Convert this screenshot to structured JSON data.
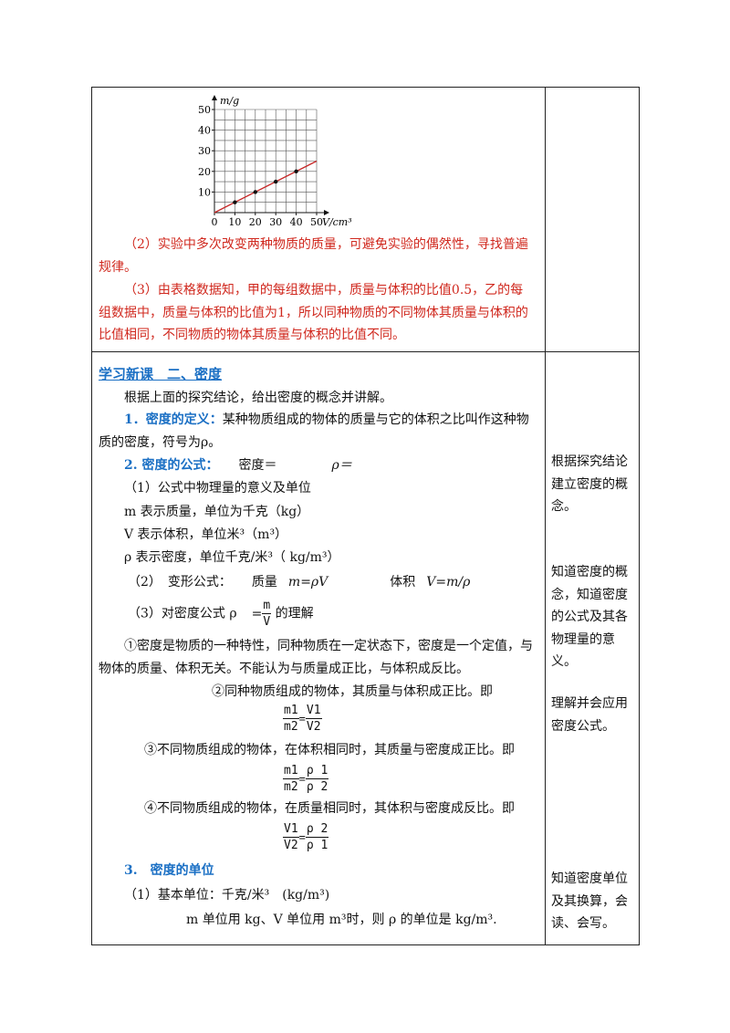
{
  "graph": {
    "y_label": "m/g",
    "x_label": "V/cm³",
    "xlim": [
      0,
      50
    ],
    "ylim": [
      0,
      50
    ],
    "xticks": [
      0,
      10,
      20,
      30,
      40,
      50
    ],
    "yticks": [
      10,
      20,
      30,
      40,
      50
    ],
    "points": {
      "x": [
        10,
        20,
        30,
        40
      ],
      "y": [
        5,
        10,
        15,
        20
      ]
    },
    "line_color": "#c62828"
  },
  "top_paragraphs": [
    "（2）实验中多次改变两种物质的质量，可避免实验的偶然性，寻找普遍规律。",
    "（3）由表格数据知，甲的每组数据中，质量与体积的比值0.5，乙的每组数据中，质量与体积的比值为1，所以同种物质的不同物体其质量与体积的比值相同，不同物质的物体其质量与体积的比值不同。"
  ],
  "section_title": "学习新课　二、密度",
  "intro": "根据上面的探究结论，给出密度的概念并讲解。",
  "definition": {
    "label": "1．密度的定义：",
    "text": "某种物质组成的物体的质量与它的体积之比叫作这种物质的密度，符号为ρ。"
  },
  "formula": {
    "label": "2. 密度的公式：",
    "word": "密度＝",
    "symbol": "ρ＝"
  },
  "meaning_heading": "（1）公式中物理量的意义及单位",
  "meanings": [
    "m 表示质量，单位为千克（kg）",
    "V 表示体积，单位米³（m³）",
    "ρ 表示密度，单位千克/米³（ kg/m³）"
  ],
  "transform": {
    "label": "（2）　变形公式：",
    "mass_word": "质量",
    "mass_formula": "m=ρV",
    "volume_word": "体积",
    "volume_formula": "V=m/ρ"
  },
  "understanding": {
    "prefix": "（3）对密度公式 ρ",
    "eq": "=",
    "num": "m",
    "den": "V",
    "suffix": "的理解"
  },
  "point1": "①密度是物质的一种特性，同种物质在一定状态下，密度是一个定值，与物体的质量、体积无关。不能认为与质量成正比，与体积成反比。",
  "ratios": [
    {
      "text": "②同种物质组成的物体，其质量与体积成正比。即",
      "left_num": "m1",
      "left_den": "m2",
      "eq": "=",
      "right_num": "V1",
      "right_den": "V2"
    },
    {
      "text": "③不同物质组成的物体，在体积相同时，其质量与密度成正比。即",
      "left_num": "m1",
      "left_den": "m2",
      "eq": "=",
      "right_num": "ρ 1",
      "right_den": "ρ 2"
    },
    {
      "text": "④不同物质组成的物体，在质量相同时，其体积与密度成反比。即",
      "left_num": "V1",
      "left_den": "V2",
      "eq": "=",
      "right_num": "ρ 2",
      "right_den": "ρ 1"
    }
  ],
  "units": {
    "heading": "3.　密度的单位",
    "basic": "（1）基本单位：千克/米³　(kg/m³)",
    "note": "m 单位用 kg、V 单位用 m³时，则 ρ 的单位是 kg/m³."
  },
  "notes": [
    "根据探究结论建立密度的概念。",
    "知道密度的概念，知道密度的公式及其各物理量的意义。",
    "理解并会应用密度公式。",
    "知道密度单位及其换算，会读、会写。"
  ]
}
